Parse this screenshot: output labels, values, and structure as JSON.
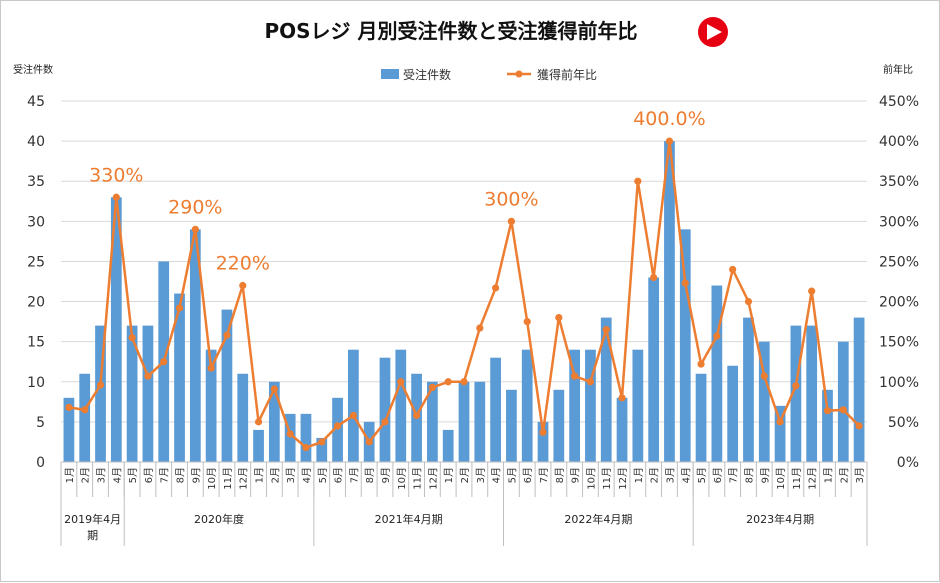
{
  "chart_data": {
    "type": "bar",
    "title": "POSレジ 月別受注件数と受注獲得前年比",
    "y_left_label": "受注件数",
    "y_right_label": "前年比",
    "ylim_left": [
      0,
      45
    ],
    "ylim_right": [
      0,
      450
    ],
    "y_left_ticks": [
      "0",
      "5",
      "10",
      "15",
      "20",
      "25",
      "30",
      "35",
      "40",
      "45"
    ],
    "y_right_ticks": [
      "0%",
      "50%",
      "100%",
      "150%",
      "200%",
      "250%",
      "300%",
      "350%",
      "400%",
      "450%"
    ],
    "grid": true,
    "legend_position": "top",
    "categories": [
      "1月",
      "2月",
      "3月",
      "4月",
      "5月",
      "6月",
      "7月",
      "8月",
      "9月",
      "10月",
      "11月",
      "12月",
      "1月",
      "2月",
      "3月",
      "4月",
      "5月",
      "6月",
      "7月",
      "8月",
      "9月",
      "10月",
      "11月",
      "12月",
      "1月",
      "2月",
      "3月",
      "4月",
      "5月",
      "6月",
      "7月",
      "8月",
      "9月",
      "10月",
      "11月",
      "12月",
      "1月",
      "2月",
      "3月",
      "4月",
      "5月",
      "6月",
      "7月",
      "8月",
      "9月",
      "10月",
      "11月",
      "12月",
      "1月",
      "2月",
      "3月"
    ],
    "series": [
      {
        "name": "受注件数",
        "type": "bar",
        "axis": "left",
        "color": "#5B9BD5",
        "values": [
          8,
          11,
          17,
          33,
          17,
          17,
          25,
          21,
          29,
          14,
          19,
          11,
          4,
          10,
          6,
          6,
          3,
          8,
          14,
          5,
          13,
          14,
          11,
          10,
          4,
          10,
          10,
          13,
          9,
          14,
          5,
          9,
          14,
          14,
          18,
          8,
          14,
          23,
          40,
          29,
          11,
          22,
          12,
          18,
          15,
          7,
          17,
          17,
          9,
          15,
          18
        ]
      },
      {
        "name": "獲得前年比",
        "type": "line",
        "axis": "right",
        "color": "#ED7D31",
        "values": [
          68,
          65,
          96,
          330,
          155,
          107,
          125,
          192,
          290,
          117,
          158,
          220,
          50,
          91,
          35,
          18,
          25,
          45,
          58,
          25,
          50,
          100,
          58,
          93,
          100,
          100,
          167,
          217,
          300,
          175,
          37,
          180,
          107,
          100,
          165,
          80,
          350,
          230,
          400,
          223,
          122,
          157,
          240,
          200,
          107,
          50,
          95,
          213,
          64,
          65,
          45
        ]
      }
    ],
    "annotations": [
      "330%",
      "290%",
      "220%",
      "300%",
      "400.0%"
    ],
    "periods": [
      "2019年4月期",
      "2020年度",
      "2021年4月期",
      "2022年4月期",
      "2023年4月期"
    ]
  },
  "icons": {
    "play": "play-button-icon"
  },
  "colors": {
    "accent": "#E60012"
  }
}
